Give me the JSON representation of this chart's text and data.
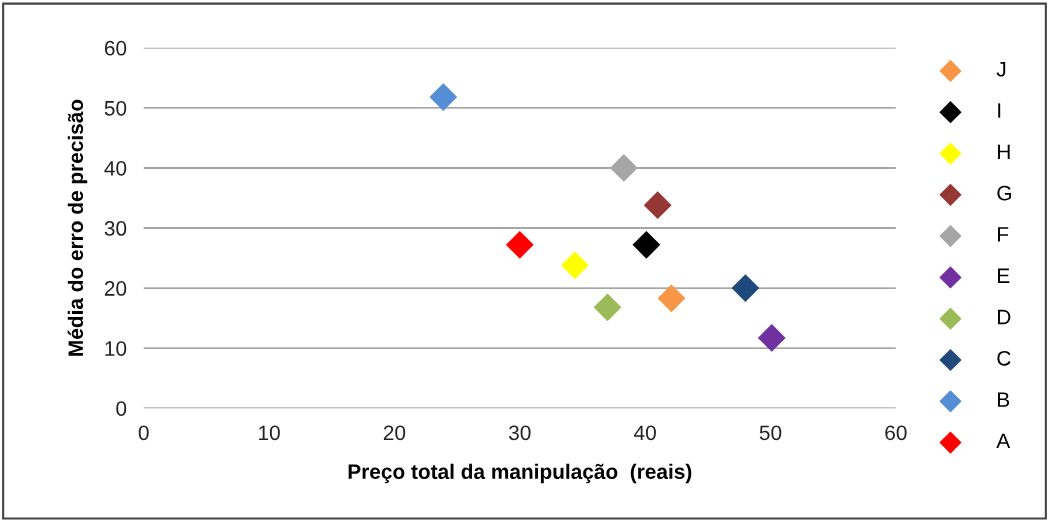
{
  "chart_data": {
    "type": "scatter",
    "xlabel": "Preço total da manipulação  (reais)",
    "ylabel": "Média do erro de precisão",
    "xlim": [
      0,
      60
    ],
    "ylim": [
      0,
      60
    ],
    "xticks": [
      0,
      10,
      20,
      30,
      40,
      50,
      60
    ],
    "yticks": [
      0,
      10,
      20,
      30,
      40,
      50,
      60
    ],
    "grid": "y",
    "legend": "right",
    "marker": "diamond",
    "series": [
      {
        "name": "J",
        "color": "#f79646",
        "x": [
          42.1
        ],
        "values": [
          18.3
        ]
      },
      {
        "name": "I",
        "color": "#000000",
        "x": [
          40.1
        ],
        "values": [
          27.2
        ]
      },
      {
        "name": "H",
        "color": "#ffff00",
        "x": [
          34.4
        ],
        "values": [
          23.8
        ]
      },
      {
        "name": "G",
        "color": "#953735",
        "x": [
          41.0
        ],
        "values": [
          33.8
        ]
      },
      {
        "name": "F",
        "color": "#a6a6a6",
        "x": [
          38.3
        ],
        "values": [
          40.0
        ]
      },
      {
        "name": "E",
        "color": "#7030a0",
        "x": [
          50.1
        ],
        "values": [
          11.7
        ]
      },
      {
        "name": "D",
        "color": "#9bbb59",
        "x": [
          37.0
        ],
        "values": [
          16.8
        ]
      },
      {
        "name": "C",
        "color": "#1f497d",
        "x": [
          48.0
        ],
        "values": [
          20.0
        ]
      },
      {
        "name": "B",
        "color": "#558ed5",
        "x": [
          23.9
        ],
        "values": [
          51.8
        ]
      },
      {
        "name": "A",
        "color": "#ff0000",
        "x": [
          30.0
        ],
        "values": [
          27.2
        ]
      }
    ]
  }
}
